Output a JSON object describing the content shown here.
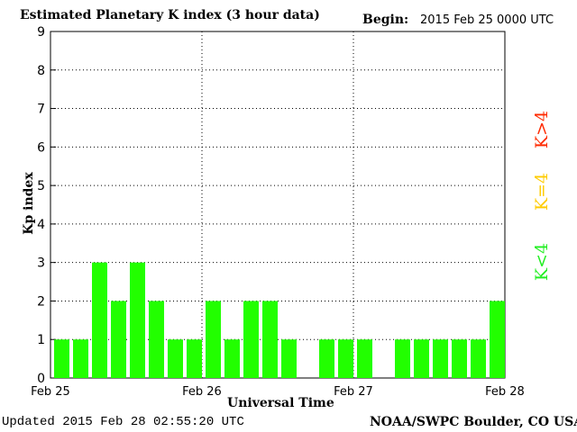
{
  "header": {
    "title": "Estimated Planetary K index (3 hour data)",
    "begin_label": "Begin:",
    "begin_value": "2015 Feb 25 0000 UTC"
  },
  "footer": {
    "updated": "Updated 2015 Feb 28 02:55:20 UTC",
    "source": "NOAA/SWPC Boulder, CO USA"
  },
  "legend": {
    "high": {
      "label": "K>4",
      "color": "#ff2a00"
    },
    "mid": {
      "label": "K=4",
      "color": "#ffcc00"
    },
    "low": {
      "label": "K<4",
      "color": "#22ee22"
    }
  },
  "chart_data": {
    "type": "bar",
    "title": "Estimated Planetary K index (3 hour data)",
    "xlabel": "Universal Time",
    "ylabel": "Kp index",
    "ylim": [
      0,
      9
    ],
    "yticks": [
      0,
      1,
      2,
      3,
      4,
      5,
      6,
      7,
      8,
      9
    ],
    "xtick_labels": [
      "Feb 25",
      "Feb 26",
      "Feb 27",
      "Feb 28"
    ],
    "grid": true,
    "bar_color": "#22ff00",
    "values": [
      1,
      1,
      3,
      2,
      3,
      2,
      1,
      1,
      2,
      1,
      2,
      2,
      1,
      0,
      1,
      1,
      1,
      0,
      1,
      1,
      1,
      1,
      1,
      2
    ]
  }
}
